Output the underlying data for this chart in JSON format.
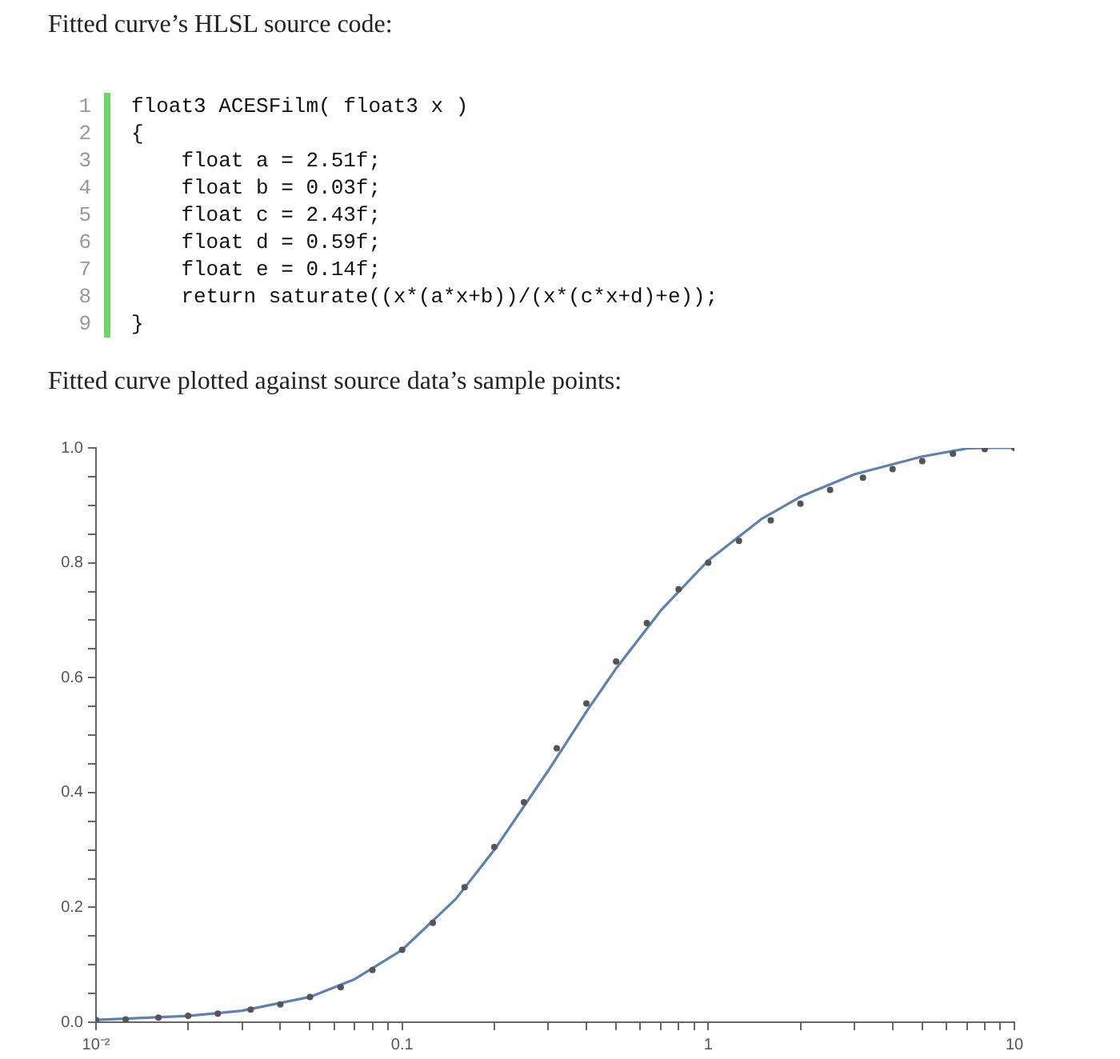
{
  "chart_data": {
    "type": "line",
    "title": "Fitted curve plotted against source data’s sample points:",
    "annotations": [
      "Fitted curve’s HLSL source code:",
      "1",
      "float3 ACESFilm( float3 x )",
      "2",
      "{",
      "3",
      "    float a = 2.51f;",
      "4",
      "    float b = 0.03f;",
      "5",
      "    float c = 2.43f;",
      "6",
      "    float d = 0.59f;",
      "7",
      "    float e = 0.14f;",
      "8",
      "    return saturate((x*(a*x+b))/(x*(c*x+d)+e));",
      "9",
      "}"
    ],
    "log": "x",
    "grid": false,
    "legend": false,
    "xlim": [
      0.01,
      10
    ],
    "ylim": [
      0,
      1
    ],
    "xticks": [
      {
        "value": 0.01,
        "label": "10⁻²"
      },
      {
        "value": 0.02,
        "label": null
      },
      {
        "value": 0.03,
        "label": null
      },
      {
        "value": 0.04,
        "label": null
      },
      {
        "value": 0.05,
        "label": null
      },
      {
        "value": 0.06,
        "label": null
      },
      {
        "value": 0.07,
        "label": null
      },
      {
        "value": 0.08,
        "label": null
      },
      {
        "value": 0.09,
        "label": null
      },
      0.1,
      {
        "value": 0.2,
        "label": null
      },
      {
        "value": 0.3,
        "label": null
      },
      {
        "value": 0.4,
        "label": null
      },
      {
        "value": 0.5,
        "label": null
      },
      {
        "value": 0.6,
        "label": null
      },
      {
        "value": 0.7,
        "label": null
      },
      {
        "value": 0.8,
        "label": null
      },
      {
        "value": 0.9,
        "label": null
      },
      1,
      {
        "value": 2,
        "label": null
      },
      {
        "value": 3,
        "label": null
      },
      {
        "value": 4,
        "label": null
      },
      {
        "value": 5,
        "label": null
      },
      {
        "value": 6,
        "label": null
      },
      {
        "value": 7,
        "label": null
      },
      {
        "value": 8,
        "label": null
      },
      {
        "value": 9,
        "label": null
      },
      10
    ],
    "yticks": [
      {
        "value": 0,
        "label": "0.0"
      },
      {
        "value": 0.05,
        "label": null
      },
      {
        "value": 0.1,
        "label": null
      },
      {
        "value": 0.15,
        "label": null
      },
      {
        "value": 0.2,
        "label": "0.2"
      },
      {
        "value": 0.25,
        "label": null
      },
      {
        "value": 0.3,
        "label": null
      },
      {
        "value": 0.35,
        "label": null
      },
      {
        "value": 0.4,
        "label": "0.4"
      },
      {
        "value": 0.45,
        "label": null
      },
      {
        "value": 0.5,
        "label": null
      },
      {
        "value": 0.55,
        "label": null
      },
      {
        "value": 0.6,
        "label": "0.6"
      },
      {
        "value": 0.65,
        "label": null
      },
      {
        "value": 0.7,
        "label": null
      },
      {
        "value": 0.75,
        "label": null
      },
      {
        "value": 0.8,
        "label": "0.8"
      },
      {
        "value": 0.85,
        "label": null
      },
      {
        "value": 0.9,
        "label": null
      },
      {
        "value": 0.95,
        "label": null
      },
      {
        "value": 1,
        "label": "1.0"
      }
    ],
    "series": [
      {
        "type": "scatter",
        "marker": "circle",
        "color": "#555555",
        "x": [
          0.01,
          0.0125,
          0.016,
          0.02,
          0.025,
          0.032,
          0.04,
          0.05,
          0.063,
          0.08,
          0.1,
          0.126,
          0.16,
          0.2,
          0.25,
          0.32,
          0.4,
          0.5,
          0.63,
          0.8,
          1,
          1.26,
          1.6,
          2,
          2.5,
          3.2,
          4,
          5,
          6.3,
          8,
          10
        ],
        "values": [
          0.004,
          0.005,
          0.008,
          0.011,
          0.015,
          0.022,
          0.031,
          0.044,
          0.061,
          0.091,
          0.126,
          0.173,
          0.235,
          0.305,
          0.383,
          0.477,
          0.555,
          0.628,
          0.695,
          0.754,
          0.8,
          0.838,
          0.874,
          0.903,
          0.927,
          0.948,
          0.963,
          0.977,
          0.99,
          0.998,
          1.0
        ]
      },
      {
        "type": "line",
        "marker": "none",
        "line_style": "solid",
        "color": "#5e81b5",
        "x": [
          0.01,
          0.02,
          0.03,
          0.05,
          0.07,
          0.1,
          0.15,
          0.2,
          0.3,
          0.4,
          0.5,
          0.7,
          1,
          1.5,
          2,
          3,
          5,
          7,
          8,
          10
        ],
        "values": [
          0.004,
          0.011,
          0.02,
          0.044,
          0.075,
          0.126,
          0.215,
          0.3,
          0.438,
          0.541,
          0.616,
          0.717,
          0.804,
          0.877,
          0.915,
          0.954,
          0.985,
          0.999,
          1.0,
          1.0
        ]
      }
    ]
  }
}
